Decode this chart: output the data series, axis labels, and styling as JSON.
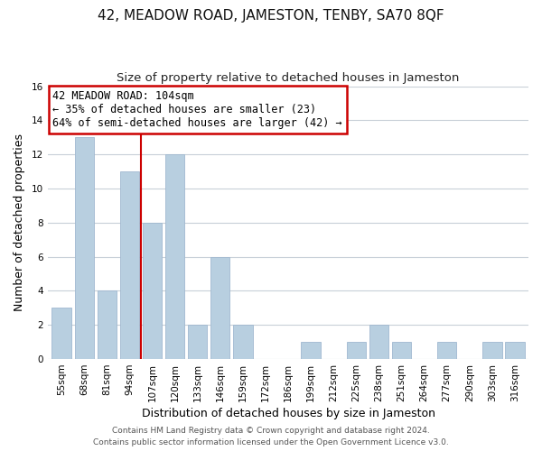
{
  "title": "42, MEADOW ROAD, JAMESTON, TENBY, SA70 8QF",
  "subtitle": "Size of property relative to detached houses in Jameston",
  "xlabel": "Distribution of detached houses by size in Jameston",
  "ylabel": "Number of detached properties",
  "bar_labels": [
    "55sqm",
    "68sqm",
    "81sqm",
    "94sqm",
    "107sqm",
    "120sqm",
    "133sqm",
    "146sqm",
    "159sqm",
    "172sqm",
    "186sqm",
    "199sqm",
    "212sqm",
    "225sqm",
    "238sqm",
    "251sqm",
    "264sqm",
    "277sqm",
    "290sqm",
    "303sqm",
    "316sqm"
  ],
  "bar_values": [
    3,
    13,
    4,
    11,
    8,
    12,
    2,
    6,
    2,
    0,
    0,
    1,
    0,
    1,
    2,
    1,
    0,
    1,
    0,
    1,
    1
  ],
  "bar_color": "#b8cfe0",
  "bar_edge_color": "#a0b8d0",
  "vline_x": 3.5,
  "vline_color": "#cc0000",
  "annotation_text": "42 MEADOW ROAD: 104sqm\n← 35% of detached houses are smaller (23)\n64% of semi-detached houses are larger (42) →",
  "annotation_box_color": "#ffffff",
  "annotation_box_edge": "#cc0000",
  "ylim": [
    0,
    16
  ],
  "yticks": [
    0,
    2,
    4,
    6,
    8,
    10,
    12,
    14,
    16
  ],
  "footer_line1": "Contains HM Land Registry data © Crown copyright and database right 2024.",
  "footer_line2": "Contains public sector information licensed under the Open Government Licence v3.0.",
  "bg_color": "#ffffff",
  "grid_color": "#c8d0d8",
  "title_fontsize": 11,
  "subtitle_fontsize": 9.5,
  "axis_label_fontsize": 9,
  "tick_fontsize": 7.5,
  "annotation_fontsize": 8.5,
  "footer_fontsize": 6.5
}
